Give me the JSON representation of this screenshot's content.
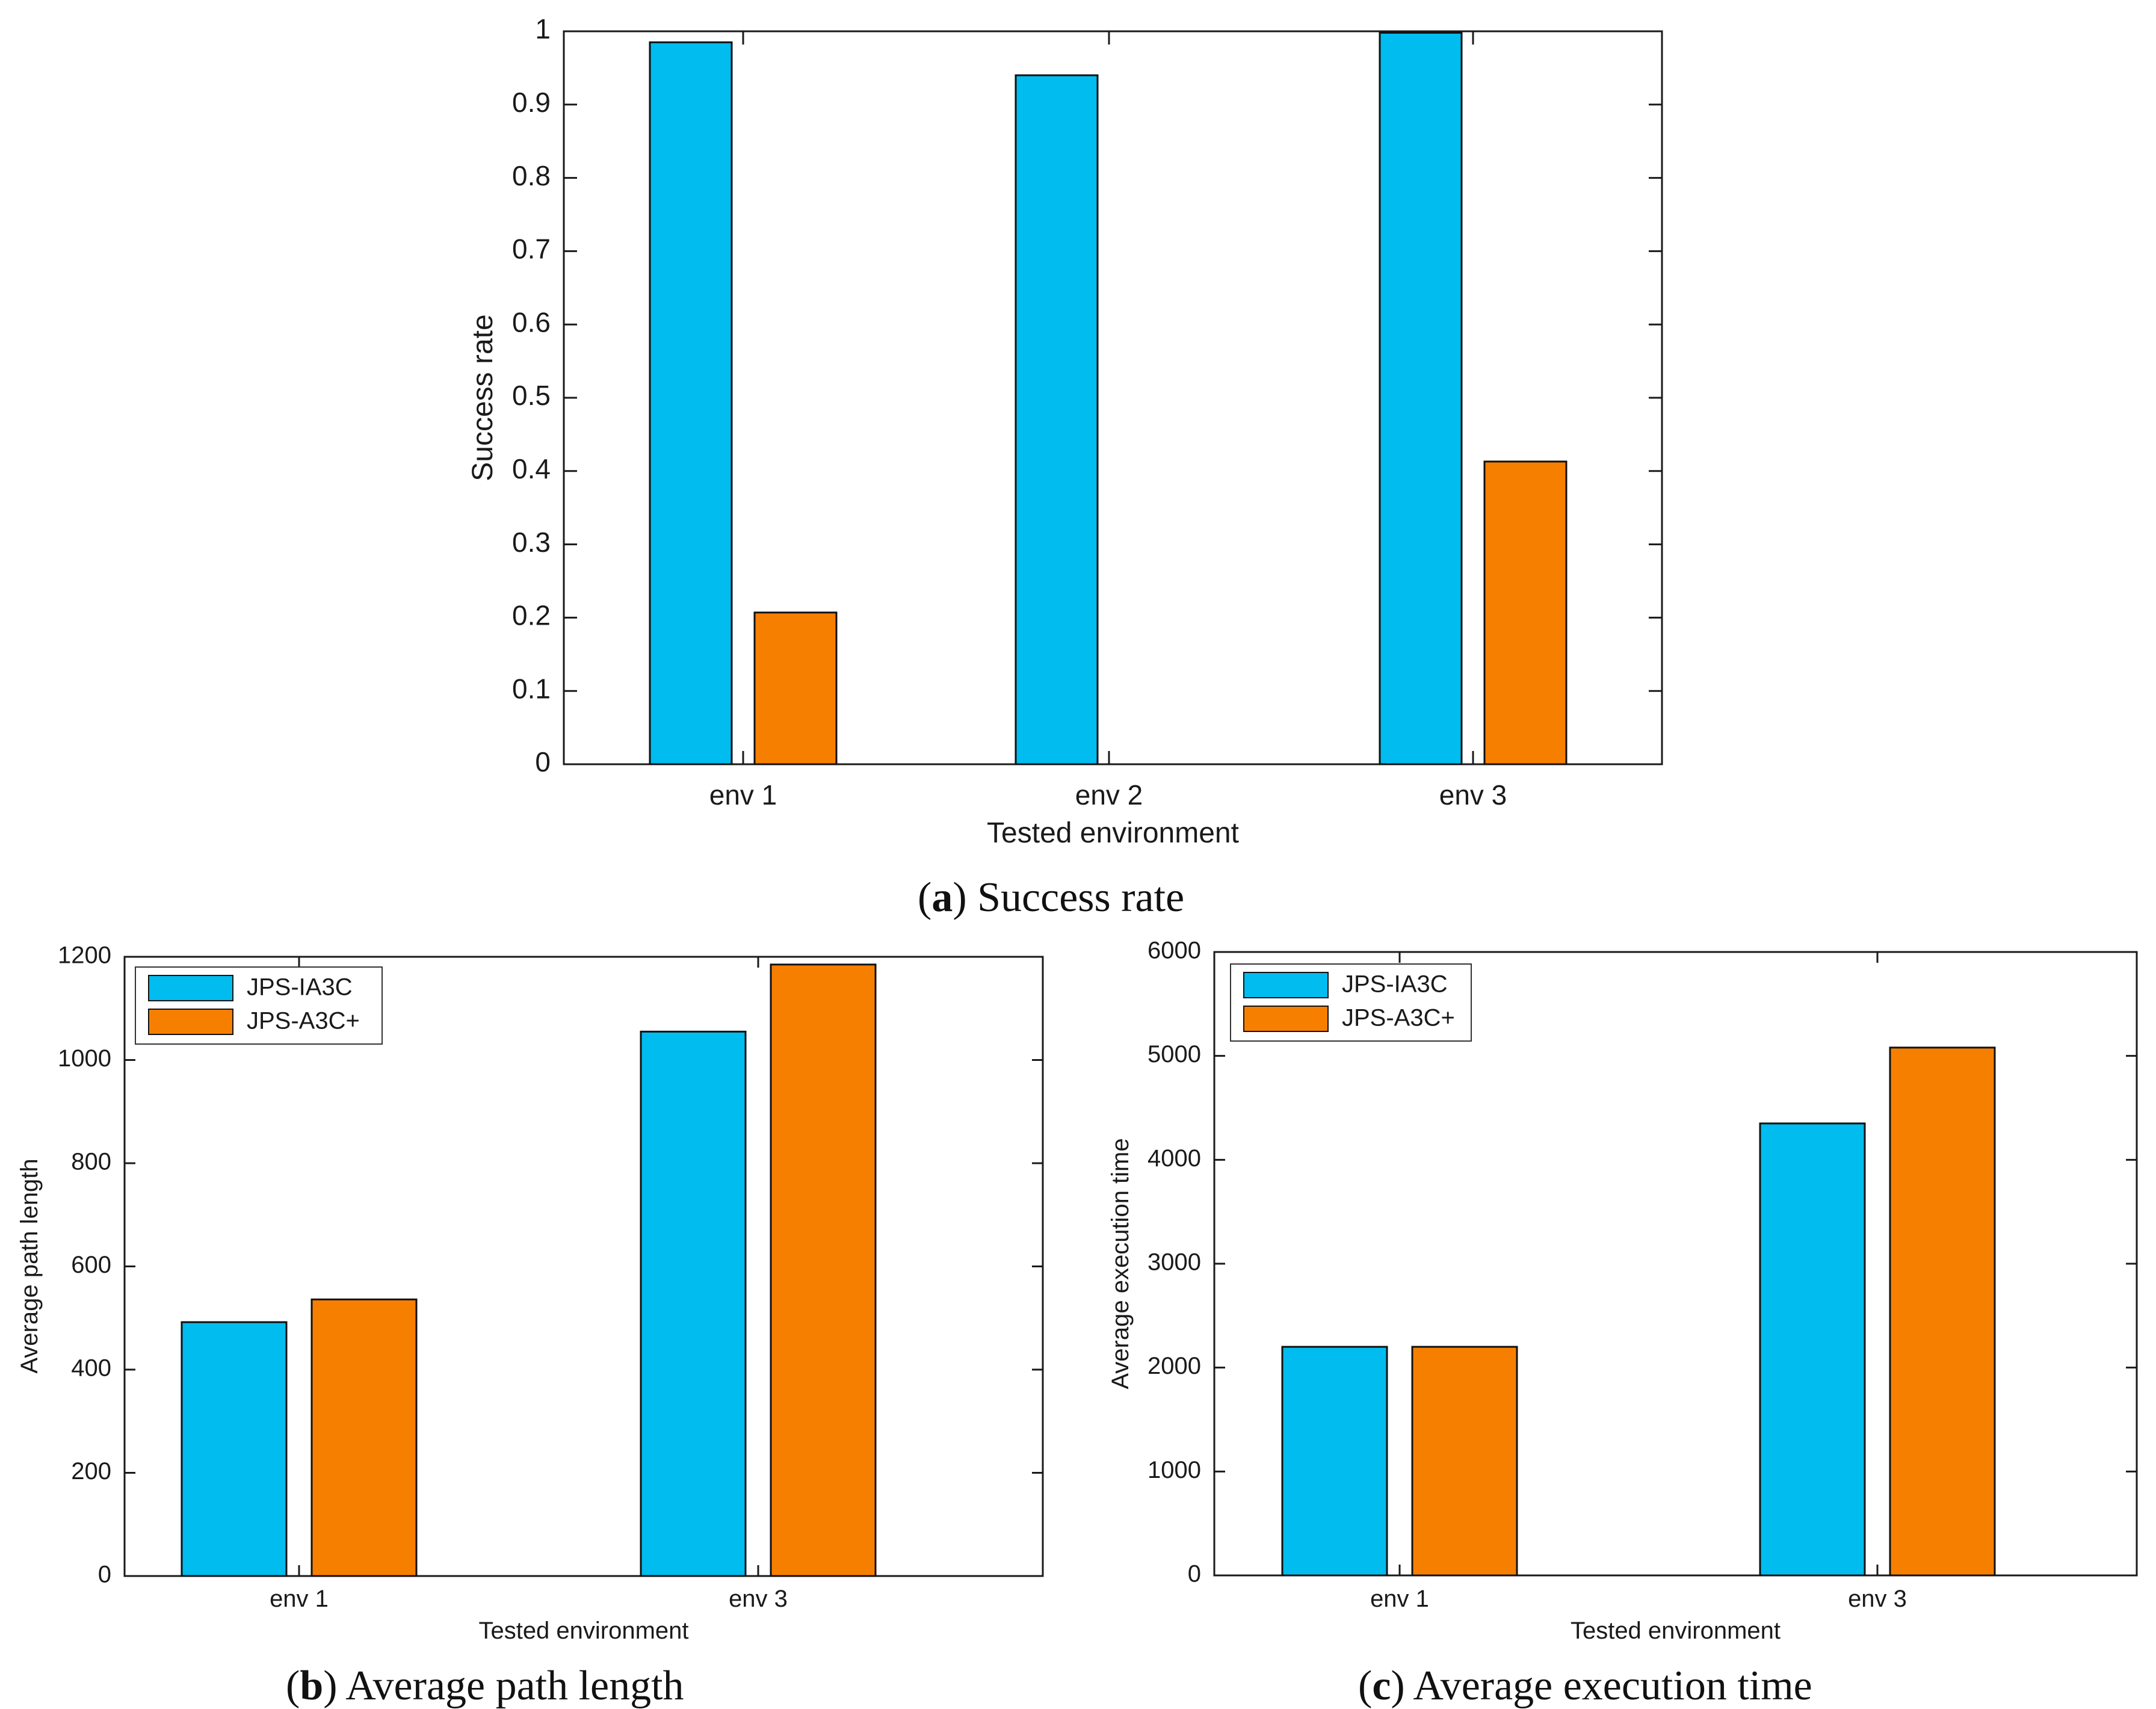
{
  "colors": {
    "series_1": "#00bcef",
    "series_2": "#f77f00",
    "axis": "#1a1a1a",
    "background": "#ffffff"
  },
  "captions": {
    "a": {
      "open": "(",
      "letter": "a",
      "close": ")",
      "text": "Success rate"
    },
    "b": {
      "open": "(",
      "letter": "b",
      "close": ")",
      "text": "Average path length"
    },
    "c": {
      "open": "(",
      "letter": "c",
      "close": ")",
      "text": "Average execution time"
    }
  },
  "chart_data": [
    {
      "id": "a",
      "type": "bar",
      "title": "",
      "xlabel": "Tested environment",
      "ylabel": "Success rate",
      "categories": [
        "env 1",
        "env 2",
        "env 3"
      ],
      "ylim": [
        0,
        1
      ],
      "yticks": [
        0,
        0.1,
        0.2,
        0.3,
        0.4,
        0.5,
        0.6,
        0.7,
        0.8,
        0.9,
        1
      ],
      "ytick_labels": [
        "0",
        "0.1",
        "0.2",
        "0.3",
        "0.4",
        "0.5",
        "0.6",
        "0.7",
        "0.8",
        "0.9",
        "1"
      ],
      "legend": null,
      "series": [
        {
          "name": "JPS-IA3C",
          "values": [
            0.985,
            0.94,
            0.998
          ]
        },
        {
          "name": "JPS-A3C+",
          "values": [
            0.207,
            0.0,
            0.413
          ]
        }
      ]
    },
    {
      "id": "b",
      "type": "bar",
      "title": "",
      "xlabel": "Tested environment",
      "ylabel": "Average path length",
      "categories": [
        "env 1",
        "env 3"
      ],
      "ylim": [
        0,
        1200
      ],
      "yticks": [
        0,
        200,
        400,
        600,
        800,
        1000,
        1200
      ],
      "ytick_labels": [
        "0",
        "200",
        "400",
        "600",
        "800",
        "1000",
        "1200"
      ],
      "legend": {
        "placement": "top-left",
        "entries": [
          "JPS-IA3C",
          "JPS-A3C+"
        ]
      },
      "series": [
        {
          "name": "JPS-IA3C",
          "values": [
            492,
            1055
          ]
        },
        {
          "name": "JPS-A3C+",
          "values": [
            536,
            1185
          ]
        }
      ]
    },
    {
      "id": "c",
      "type": "bar",
      "title": "",
      "xlabel": "Tested environment",
      "ylabel": "Average execution time",
      "categories": [
        "env 1",
        "env 3"
      ],
      "ylim": [
        0,
        6000
      ],
      "yticks": [
        0,
        1000,
        2000,
        3000,
        4000,
        5000,
        6000
      ],
      "ytick_labels": [
        "0",
        "1000",
        "2000",
        "3000",
        "4000",
        "5000",
        "6000"
      ],
      "legend": {
        "placement": "top-left",
        "entries": [
          "JPS-IA3C",
          "JPS-A3C+"
        ]
      },
      "series": [
        {
          "name": "JPS-IA3C",
          "values": [
            2200,
            4350
          ]
        },
        {
          "name": "JPS-A3C+",
          "values": [
            2200,
            5080
          ]
        }
      ]
    }
  ]
}
